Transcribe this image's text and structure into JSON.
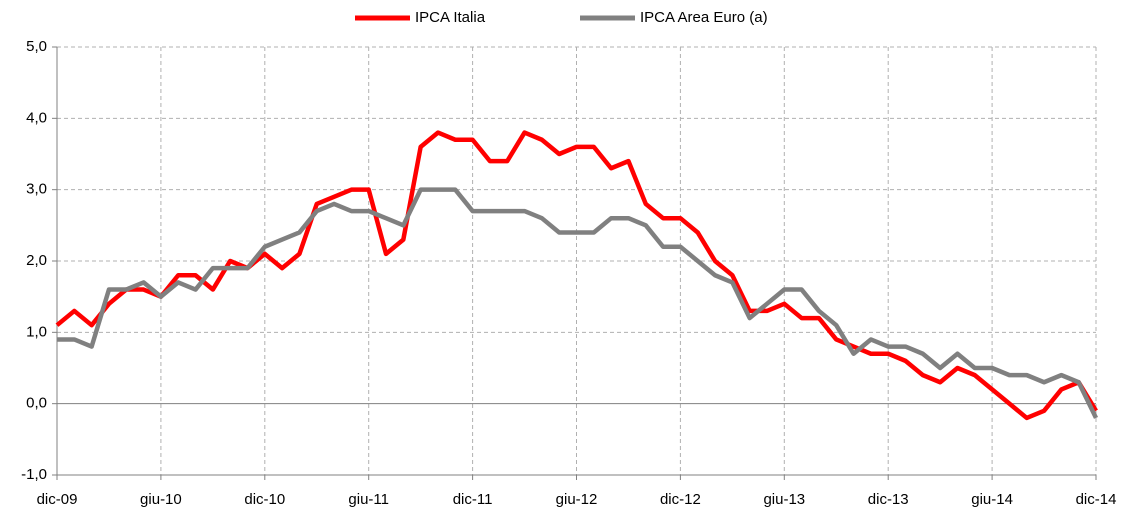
{
  "chart_data": {
    "type": "line",
    "categories": [
      "dic-09",
      null,
      null,
      null,
      null,
      null,
      "giu-10",
      null,
      null,
      null,
      null,
      null,
      "dic-10",
      null,
      null,
      null,
      null,
      null,
      "giu-11",
      null,
      null,
      null,
      null,
      null,
      "dic-11",
      null,
      null,
      null,
      null,
      null,
      "giu-12",
      null,
      null,
      null,
      null,
      null,
      "dic-12",
      null,
      null,
      null,
      null,
      null,
      "giu-13",
      null,
      null,
      null,
      null,
      null,
      "dic-13",
      null,
      null,
      null,
      null,
      null,
      "giu-14",
      null,
      null,
      null,
      null,
      null,
      "dic-14"
    ],
    "series": [
      {
        "name": "IPCA Italia",
        "color": "#ff0000",
        "values": [
          1.1,
          1.3,
          1.1,
          1.4,
          1.6,
          1.6,
          1.5,
          1.8,
          1.8,
          1.6,
          2.0,
          1.9,
          2.1,
          1.9,
          2.1,
          2.8,
          2.9,
          3.0,
          3.0,
          2.1,
          2.3,
          3.6,
          3.8,
          3.7,
          3.7,
          3.4,
          3.4,
          3.8,
          3.7,
          3.5,
          3.6,
          3.6,
          3.3,
          3.4,
          2.8,
          2.6,
          2.6,
          2.4,
          2.0,
          1.8,
          1.3,
          1.3,
          1.4,
          1.2,
          1.2,
          0.9,
          0.8,
          0.7,
          0.7,
          0.6,
          0.4,
          0.3,
          0.5,
          0.4,
          0.2,
          0.0,
          -0.2,
          -0.1,
          0.2,
          0.3,
          -0.1
        ]
      },
      {
        "name": "IPCA Area Euro (a)",
        "color": "#808080",
        "values": [
          0.9,
          0.9,
          0.8,
          1.6,
          1.6,
          1.7,
          1.5,
          1.7,
          1.6,
          1.9,
          1.9,
          1.9,
          2.2,
          2.3,
          2.4,
          2.7,
          2.8,
          2.7,
          2.7,
          2.6,
          2.5,
          3.0,
          3.0,
          3.0,
          2.7,
          2.7,
          2.7,
          2.7,
          2.6,
          2.4,
          2.4,
          2.4,
          2.6,
          2.6,
          2.5,
          2.2,
          2.2,
          2.0,
          1.8,
          1.7,
          1.2,
          1.4,
          1.6,
          1.6,
          1.3,
          1.1,
          0.7,
          0.9,
          0.8,
          0.8,
          0.7,
          0.5,
          0.7,
          0.5,
          0.5,
          0.4,
          0.4,
          0.3,
          0.4,
          0.3,
          -0.2
        ]
      }
    ],
    "ylim": [
      -1,
      5
    ],
    "yticks": [
      {
        "value": -1,
        "label": "-1,0"
      },
      {
        "value": 0,
        "label": "0,0"
      },
      {
        "value": 1,
        "label": "1,0"
      },
      {
        "value": 2,
        "label": "2,0"
      },
      {
        "value": 3,
        "label": "3,0"
      },
      {
        "value": 4,
        "label": "4,0"
      },
      {
        "value": 5,
        "label": "5,0"
      }
    ],
    "grid": true,
    "legend": "top"
  }
}
